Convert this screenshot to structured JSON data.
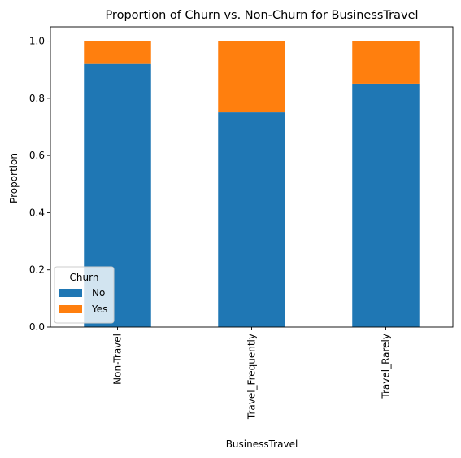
{
  "chart_data": {
    "type": "bar",
    "stacked": true,
    "title": "Proportion of Churn vs. Non-Churn for BusinessTravel",
    "xlabel": "BusinessTravel",
    "ylabel": "Proportion",
    "categories": [
      "Non-Travel",
      "Travel_Frequently",
      "Travel_Rarely"
    ],
    "series": [
      {
        "name": "No",
        "values": [
          0.92,
          0.751,
          0.851
        ],
        "color": "#1f77b4"
      },
      {
        "name": "Yes",
        "values": [
          0.08,
          0.249,
          0.149
        ],
        "color": "#ff7f0e"
      }
    ],
    "ylim": [
      0,
      1.05
    ],
    "yticks": [
      "0.0",
      "0.2",
      "0.4",
      "0.6",
      "0.8",
      "1.0"
    ],
    "legend": {
      "title": "Churn",
      "placement": "lower-left"
    },
    "grid": false
  }
}
